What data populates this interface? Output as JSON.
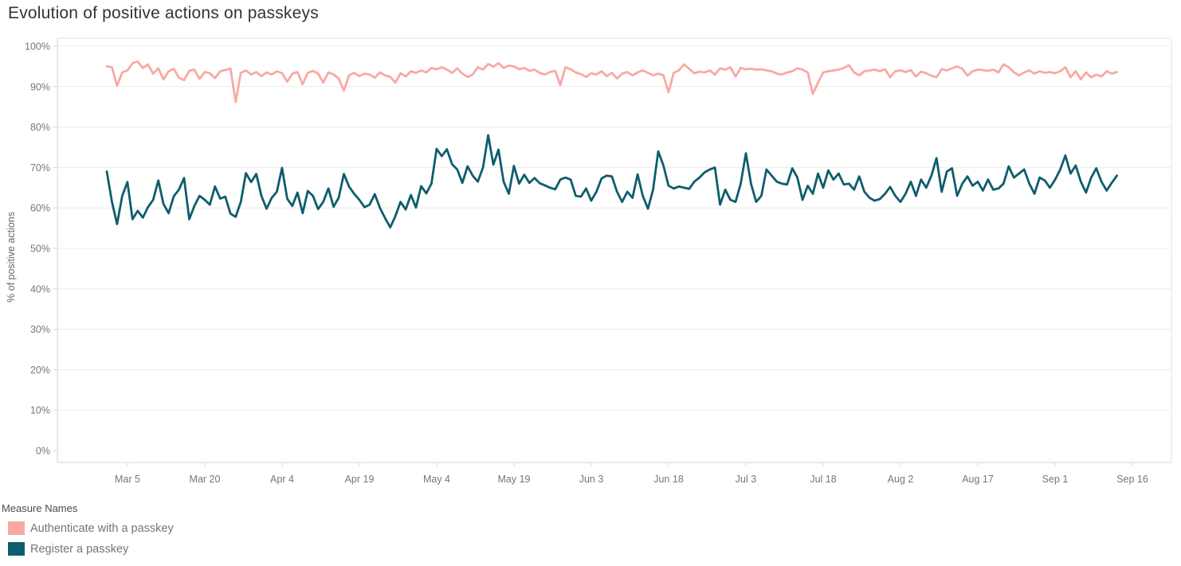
{
  "title": "Evolution of positive actions on passkeys",
  "y_axis": {
    "label": "% of positive actions",
    "ticks": [
      "0%",
      "10%",
      "20%",
      "30%",
      "40%",
      "50%",
      "60%",
      "70%",
      "80%",
      "90%",
      "100%"
    ]
  },
  "x_axis": {
    "ticks": [
      "Mar 5",
      "Mar 20",
      "Apr 4",
      "Apr 19",
      "May 4",
      "May 19",
      "Jun 3",
      "Jun 18",
      "Jul 3",
      "Jul 18",
      "Aug 2",
      "Aug 17",
      "Sep 1",
      "Sep 16"
    ]
  },
  "legend": {
    "title": "Measure Names",
    "items": [
      {
        "label": "Authenticate with a passkey",
        "color": "#F9A9A2"
      },
      {
        "label": "Register a passkey",
        "color": "#0E5D6C"
      }
    ]
  },
  "colors": {
    "authenticate_series": "#F9A9A2",
    "register_series": "#0E5D6C",
    "gridline": "#ececec",
    "axis_line": "#d6d6d6",
    "tick_label": "#767676",
    "title_text": "#333333"
  },
  "chart_data": {
    "type": "line",
    "title": "Evolution of positive actions on passkeys",
    "xlabel": "",
    "ylabel": "% of positive actions",
    "ylim": [
      0,
      100
    ],
    "grid": true,
    "legend_position": "bottom-left",
    "x_unit": "day",
    "x_start_date": "Mar 1",
    "x_end_date": "Sep 13",
    "x_tick_labels": [
      "Mar 5",
      "Mar 20",
      "Apr 4",
      "Apr 19",
      "May 4",
      "May 19",
      "Jun 3",
      "Jun 18",
      "Jul 3",
      "Jul 18",
      "Aug 2",
      "Aug 17",
      "Sep 1",
      "Sep 16"
    ],
    "series": [
      {
        "name": "Authenticate with a passkey",
        "color": "#F9A9A2",
        "values": [
          95.0,
          94.8,
          90.2,
          93.5,
          94.0,
          95.8,
          96.2,
          94.6,
          95.5,
          93.2,
          94.5,
          91.8,
          93.8,
          94.4,
          92.2,
          91.6,
          93.9,
          94.2,
          91.9,
          93.6,
          93.3,
          92.1,
          93.8,
          94.1,
          94.5,
          86.2,
          93.4,
          94.0,
          93.0,
          93.6,
          92.6,
          93.5,
          93.0,
          93.8,
          93.3,
          91.2,
          93.2,
          93.6,
          90.6,
          93.4,
          93.9,
          93.2,
          91.0,
          93.5,
          93.0,
          92.0,
          89.0,
          92.8,
          93.4,
          92.6,
          93.2,
          93.0,
          92.2,
          93.5,
          92.8,
          92.4,
          91.0,
          93.3,
          92.5,
          93.8,
          93.4,
          94.0,
          93.5,
          94.6,
          94.3,
          94.8,
          94.2,
          93.4,
          94.5,
          93.2,
          92.4,
          93.0,
          94.8,
          94.2,
          95.6,
          94.9,
          95.8,
          94.6,
          95.2,
          95.0,
          94.3,
          94.6,
          93.9,
          94.2,
          93.4,
          93.0,
          93.6,
          93.9,
          90.4,
          94.8,
          94.3,
          93.5,
          93.1,
          92.4,
          93.3,
          93.0,
          93.8,
          92.6,
          93.4,
          92.0,
          93.2,
          93.6,
          92.8,
          93.5,
          94.0,
          93.4,
          92.8,
          93.2,
          92.8,
          88.6,
          93.4,
          94.0,
          95.5,
          94.4,
          93.3,
          93.7,
          93.5,
          94.0,
          93.0,
          94.5,
          94.2,
          94.8,
          92.5,
          94.6,
          94.3,
          94.4,
          94.2,
          94.3,
          94.0,
          93.8,
          93.2,
          93.0,
          93.5,
          93.8,
          94.5,
          94.2,
          93.5,
          88.2,
          91.0,
          93.5,
          93.8,
          94.0,
          94.2,
          94.6,
          95.3,
          93.5,
          92.8,
          93.8,
          94.0,
          94.2,
          93.8,
          94.3,
          92.3,
          93.8,
          94.0,
          93.6,
          94.1,
          92.5,
          93.7,
          93.3,
          92.7,
          92.3,
          94.3,
          94.0,
          94.5,
          95.0,
          94.4,
          92.7,
          93.8,
          94.2,
          94.1,
          93.9,
          94.2,
          93.5,
          95.5,
          94.8,
          93.5,
          92.8,
          93.5,
          94.0,
          93.2,
          93.8,
          93.4,
          93.6,
          93.3,
          93.8,
          94.8,
          92.3,
          93.8,
          91.8,
          93.5,
          92.3,
          93.0,
          92.5,
          93.8,
          93.2,
          93.6
        ]
      },
      {
        "name": "Register a passkey",
        "color": "#0E5D6C",
        "values": [
          69.0,
          61.5,
          56.0,
          63.0,
          66.4,
          57.2,
          59.3,
          57.6,
          60.2,
          62.0,
          66.8,
          61.0,
          58.7,
          62.9,
          64.5,
          67.4,
          57.2,
          60.5,
          63.0,
          62.0,
          60.8,
          65.3,
          62.3,
          62.8,
          58.6,
          57.8,
          61.5,
          68.6,
          66.4,
          68.4,
          63.0,
          59.8,
          62.5,
          64.0,
          69.9,
          62.3,
          60.5,
          63.8,
          58.7,
          64.2,
          63.0,
          59.7,
          61.5,
          64.8,
          60.3,
          62.5,
          68.4,
          65.3,
          63.5,
          62.0,
          60.2,
          60.8,
          63.4,
          60.0,
          57.5,
          55.2,
          58.0,
          61.5,
          59.6,
          63.2,
          60.1,
          65.4,
          63.6,
          66.0,
          74.6,
          72.8,
          74.5,
          70.8,
          69.5,
          66.2,
          70.3,
          68.0,
          66.5,
          70.0,
          78.0,
          70.7,
          74.4,
          66.5,
          63.5,
          70.4,
          66.0,
          68.2,
          66.2,
          67.4,
          66.1,
          65.6,
          65.0,
          64.6,
          67.0,
          67.5,
          67.0,
          63.0,
          62.8,
          64.8,
          61.8,
          64.0,
          67.3,
          68.0,
          67.8,
          64.0,
          61.5,
          64.0,
          62.5,
          68.3,
          63.0,
          59.8,
          64.5,
          74.0,
          70.5,
          65.5,
          64.8,
          65.3,
          65.0,
          64.7,
          66.5,
          67.5,
          68.8,
          69.5,
          70.0,
          60.8,
          64.5,
          62.0,
          61.5,
          66.0,
          73.5,
          66.0,
          61.5,
          63.0,
          69.5,
          68.0,
          66.5,
          66.0,
          65.8,
          69.8,
          67.5,
          62.0,
          65.5,
          63.5,
          68.5,
          65.0,
          69.3,
          67.0,
          68.5,
          65.8,
          66.0,
          64.5,
          67.8,
          64.0,
          62.5,
          61.8,
          62.2,
          63.5,
          65.2,
          63.0,
          61.5,
          63.5,
          66.5,
          63.0,
          67.0,
          65.0,
          68.0,
          72.3,
          64.0,
          69.0,
          69.8,
          63.0,
          66.0,
          67.8,
          65.5,
          66.5,
          64.3,
          67.0,
          64.5,
          64.8,
          66.0,
          70.3,
          67.5,
          68.5,
          69.5,
          66.0,
          63.5,
          67.5,
          66.8,
          65.0,
          67.0,
          69.5,
          73.0,
          68.5,
          70.5,
          66.5,
          63.8,
          67.5,
          69.8,
          66.5,
          64.3,
          66.2,
          68.0
        ]
      }
    ]
  }
}
